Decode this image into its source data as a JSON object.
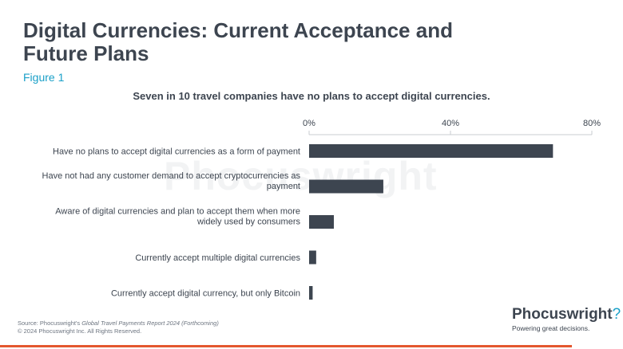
{
  "header": {
    "title": "Digital Currencies: Current Acceptance and Future Plans",
    "figure": "Figure 1"
  },
  "watermark": "Phocuswright",
  "footer": {
    "source_prefix": "Source: Phocuswright's ",
    "source_title": "Global Travel Payments Report 2024 (Forthcoming)",
    "copyright": "© 2024 Phocuswright Inc. All Rights Reserved."
  },
  "logo": {
    "brand": "Phocuswright",
    "mark": "?",
    "tagline": "Powering great decisions."
  },
  "colors": {
    "bar": "#3d4550",
    "accent": "#1aa0c8",
    "rule": "#e4572e"
  },
  "chart_data": {
    "type": "bar",
    "orientation": "horizontal",
    "title": "Seven in 10 travel companies have no plans to accept digital currencies.",
    "categories": [
      [
        "Have no plans to accept digital currencies as a form of payment"
      ],
      [
        "Have not had any customer demand to accept cryptocurrencies as",
        "payment"
      ],
      [
        "Aware of digital currencies and plan to accept them when more",
        "widely used by consumers"
      ],
      [
        "Currently accept multiple digital currencies"
      ],
      [
        "Currently accept digital currency, but only Bitcoin"
      ]
    ],
    "values": [
      69,
      21,
      7,
      2,
      1
    ],
    "xlim": [
      0,
      80
    ],
    "xticks": [
      0,
      40,
      80
    ],
    "tick_suffix": "%",
    "grid": false,
    "legend": "none"
  }
}
